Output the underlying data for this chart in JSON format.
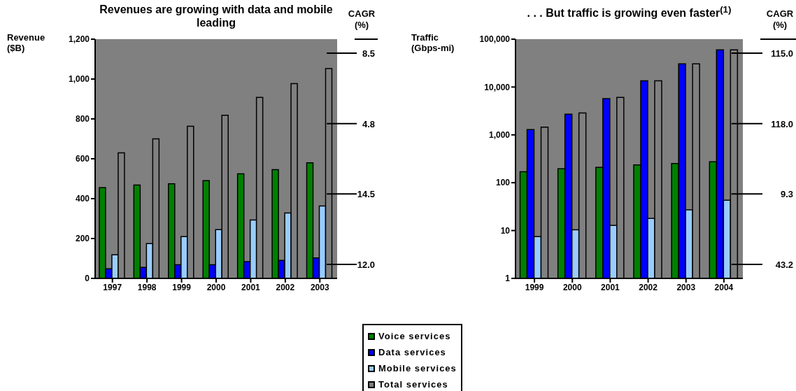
{
  "chart_data": [
    {
      "type": "bar",
      "title": "Revenues are growing with data and mobile leading",
      "ylabel": "Revenue ($B)",
      "categories": [
        "1997",
        "1998",
        "1999",
        "2000",
        "2001",
        "2002",
        "2003"
      ],
      "series": [
        {
          "name": "Voice services",
          "color": "#008000",
          "values": [
            455,
            468,
            475,
            490,
            525,
            546,
            580
          ]
        },
        {
          "name": "Data services",
          "color": "#0000ff",
          "values": [
            48,
            55,
            68,
            68,
            84,
            90,
            103
          ]
        },
        {
          "name": "Mobile services",
          "color": "#99ccff",
          "values": [
            118,
            175,
            210,
            245,
            293,
            328,
            363
          ]
        },
        {
          "name": "Total services",
          "color": "#808080",
          "values": [
            630,
            700,
            763,
            818,
            908,
            977,
            1053
          ]
        }
      ],
      "ylim": [
        0,
        1200
      ],
      "yticks": [
        0,
        200,
        400,
        600,
        800,
        {
          "value": 1000,
          "label": "1,000"
        },
        {
          "value": 1200,
          "label": "1,200"
        }
      ],
      "grid": false,
      "legend": "bottom",
      "annotations": [
        "CAGR (%)",
        "8.5",
        "4.8",
        "14.5",
        "12.0"
      ]
    },
    {
      "type": "bar",
      "title": ". . . But traffic is growing even faster$^{(1)}$",
      "ylabel": "Traffic (Gbps-mi)",
      "categories": [
        "1999",
        "2000",
        "2001",
        "2002",
        "2003",
        "2004"
      ],
      "series": [
        {
          "name": "Voice services",
          "color": "#008000",
          "values": [
            170,
            195,
            209,
            236,
            252,
            274
          ]
        },
        {
          "name": "Data services",
          "color": "#0000ff",
          "values": [
            1290,
            2700,
            5700,
            13500,
            30500,
            60000
          ]
        },
        {
          "name": "Mobile services",
          "color": "#99ccff",
          "values": [
            7.5,
            10.4,
            12.8,
            18,
            27,
            43
          ]
        },
        {
          "name": "Total services",
          "color": "#808080",
          "values": [
            1450,
            2870,
            6050,
            13500,
            30500,
            60000
          ]
        }
      ],
      "log": "y",
      "ylim": [
        1,
        100000
      ],
      "yticks": [
        1,
        10,
        100,
        {
          "value": 1000,
          "label": "1,000"
        },
        {
          "value": 10000,
          "label": "10,000"
        },
        {
          "value": 100000,
          "label": "100,000"
        }
      ],
      "grid": false,
      "annotations": [
        "CAGR (%)",
        "115.0",
        "118.0",
        "9.3",
        "43.2"
      ]
    }
  ]
}
